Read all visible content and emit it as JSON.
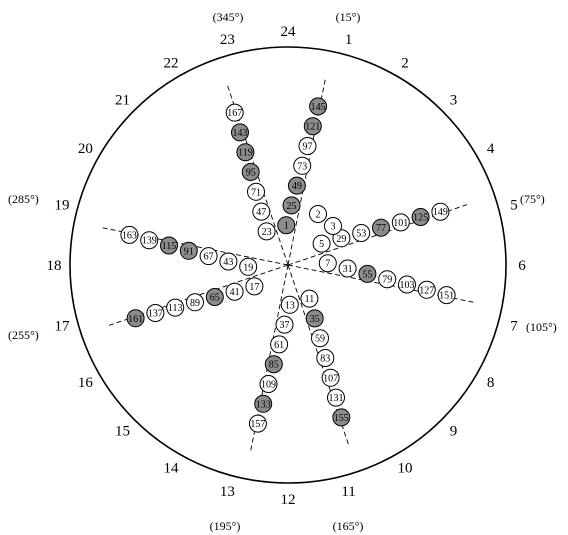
{
  "colors": {
    "filled": "#8c8c8c",
    "empty": "#ffffff",
    "stroke": "#000000"
  },
  "dial_labels": [
    "1",
    "2",
    "3",
    "4",
    "5",
    "6",
    "7",
    "8",
    "9",
    "10",
    "11",
    "12",
    "13",
    "14",
    "15",
    "16",
    "17",
    "18",
    "19",
    "20",
    "21",
    "22",
    "23",
    "24"
  ],
  "degree_labels": [
    {
      "id": "d15",
      "text": "(15°)"
    },
    {
      "id": "d75",
      "text": "(75°)"
    },
    {
      "id": "d105",
      "text": "(105°)"
    },
    {
      "id": "d165",
      "text": "(165°)"
    },
    {
      "id": "d195",
      "text": "(195°)"
    },
    {
      "id": "d255",
      "text": "(255°)"
    },
    {
      "id": "d285",
      "text": "(285°)"
    },
    {
      "id": "d345",
      "text": "(345°)"
    }
  ],
  "spokes": [
    {
      "position": 1,
      "nodes": [
        {
          "label": "1",
          "filled": true
        },
        {
          "label": "25",
          "filled": true
        },
        {
          "label": "49",
          "filled": true
        },
        {
          "label": "73",
          "filled": false
        },
        {
          "label": "97",
          "filled": false
        },
        {
          "label": "121",
          "filled": true
        },
        {
          "label": "145",
          "filled": true
        }
      ]
    },
    {
      "position": 5,
      "nodes": [
        {
          "label": "5",
          "filled": false
        },
        {
          "label": "29",
          "filled": false
        },
        {
          "label": "53",
          "filled": false
        },
        {
          "label": "77",
          "filled": true
        },
        {
          "label": "101",
          "filled": false
        },
        {
          "label": "125",
          "filled": true
        },
        {
          "label": "149",
          "filled": false
        }
      ]
    },
    {
      "position": 7,
      "nodes": [
        {
          "label": "7",
          "filled": false
        },
        {
          "label": "31",
          "filled": false
        },
        {
          "label": "55",
          "filled": true
        },
        {
          "label": "79",
          "filled": false
        },
        {
          "label": "103",
          "filled": false
        },
        {
          "label": "127",
          "filled": false
        },
        {
          "label": "151",
          "filled": false
        }
      ]
    },
    {
      "position": 11,
      "nodes": [
        {
          "label": "11",
          "filled": false
        },
        {
          "label": "35",
          "filled": true
        },
        {
          "label": "59",
          "filled": false
        },
        {
          "label": "83",
          "filled": false
        },
        {
          "label": "107",
          "filled": false
        },
        {
          "label": "131",
          "filled": false
        },
        {
          "label": "155",
          "filled": true
        }
      ]
    },
    {
      "position": 13,
      "nodes": [
        {
          "label": "13",
          "filled": false
        },
        {
          "label": "37",
          "filled": false
        },
        {
          "label": "61",
          "filled": false
        },
        {
          "label": "85",
          "filled": true
        },
        {
          "label": "109",
          "filled": false
        },
        {
          "label": "133",
          "filled": true
        },
        {
          "label": "157",
          "filled": false
        }
      ]
    },
    {
      "position": 17,
      "nodes": [
        {
          "label": "17",
          "filled": false
        },
        {
          "label": "41",
          "filled": false
        },
        {
          "label": "65",
          "filled": true
        },
        {
          "label": "89",
          "filled": false
        },
        {
          "label": "113",
          "filled": false
        },
        {
          "label": "137",
          "filled": false
        },
        {
          "label": "161",
          "filled": true
        }
      ]
    },
    {
      "position": 19,
      "nodes": [
        {
          "label": "19",
          "filled": false
        },
        {
          "label": "43",
          "filled": false
        },
        {
          "label": "67",
          "filled": false
        },
        {
          "label": "91",
          "filled": true
        },
        {
          "label": "115",
          "filled": true
        },
        {
          "label": "139",
          "filled": false
        },
        {
          "label": "163",
          "filled": false
        }
      ]
    },
    {
      "position": 23,
      "nodes": [
        {
          "label": "23",
          "filled": false
        },
        {
          "label": "47",
          "filled": false
        },
        {
          "label": "71",
          "filled": false
        },
        {
          "label": "95",
          "filled": true
        },
        {
          "label": "119",
          "filled": true
        },
        {
          "label": "143",
          "filled": true
        },
        {
          "label": "167",
          "filled": false
        }
      ]
    }
  ],
  "extra_nodes": [
    {
      "label": "2",
      "filled": false
    },
    {
      "label": "3",
      "filled": false
    }
  ]
}
